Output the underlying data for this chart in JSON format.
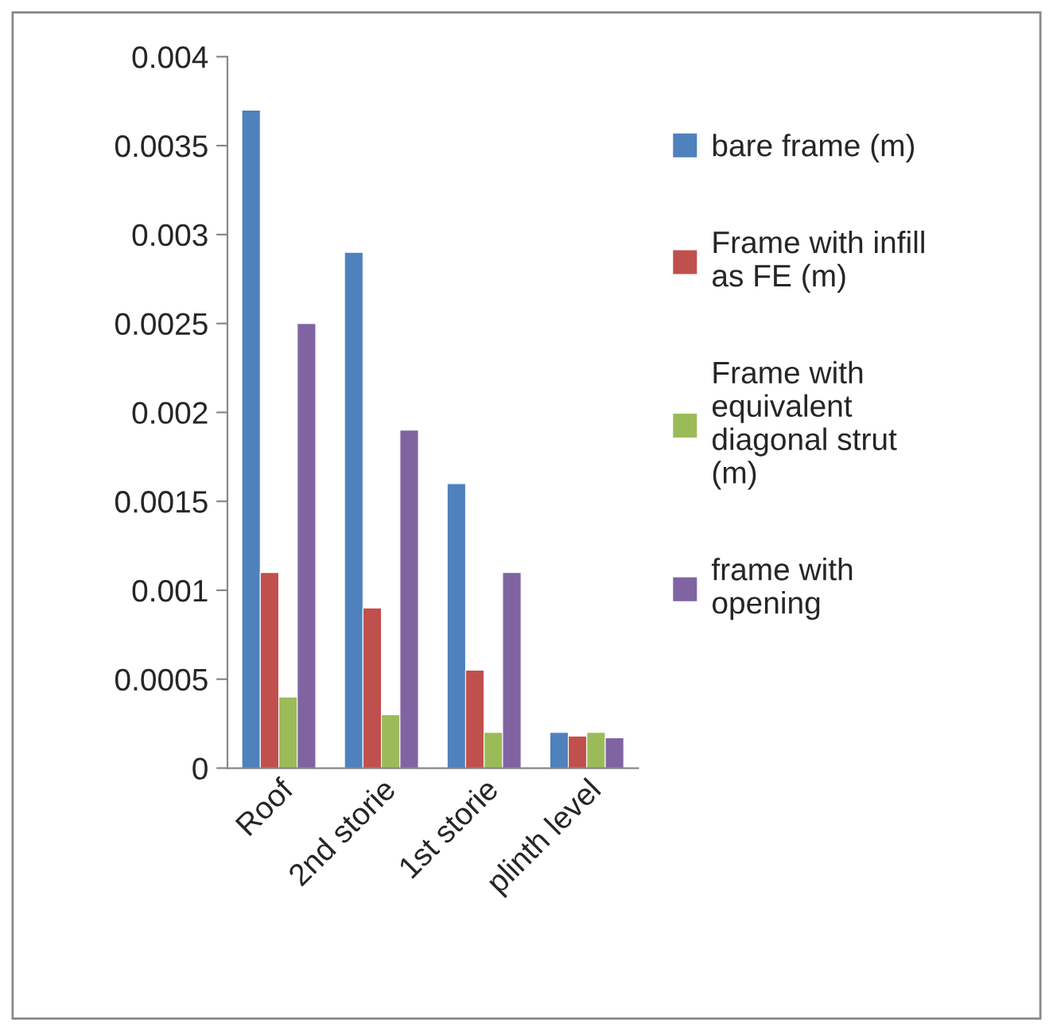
{
  "chart_data": {
    "type": "bar",
    "categories": [
      "Roof",
      "2nd storie",
      "1st storie",
      "plinth level"
    ],
    "series": [
      {
        "name": "bare frame (m)",
        "color": "#4f81bd",
        "values": [
          0.0037,
          0.0029,
          0.0016,
          0.0002
        ]
      },
      {
        "name": "Frame with infill as FE (m)",
        "color": "#c0504d",
        "values": [
          0.0011,
          0.0009,
          0.00055,
          0.00018
        ]
      },
      {
        "name": "Frame with equivalent diagonal strut (m)",
        "color": "#9bbb59",
        "values": [
          0.0004,
          0.0003,
          0.0002,
          0.0002
        ]
      },
      {
        "name": "frame with opening",
        "color": "#8064a2",
        "values": [
          0.0025,
          0.0019,
          0.0011,
          0.00017
        ]
      }
    ],
    "ylim": [
      0,
      0.004
    ],
    "yticks": [
      0,
      0.0005,
      0.001,
      0.0015,
      0.002,
      0.0025,
      0.003,
      0.0035,
      0.004
    ],
    "grid": false,
    "legend": "right"
  }
}
